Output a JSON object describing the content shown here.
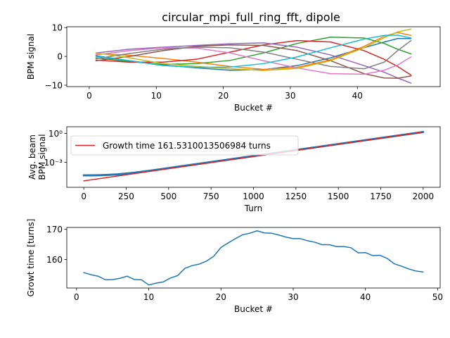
{
  "title": "circular_mpi_full_ring_fft, dipole",
  "chart_data": [
    {
      "type": "line",
      "xlabel": "Bucket #",
      "ylabel": "BPM signal",
      "xlim": [
        -3.35,
        52.35
      ],
      "ylim": [
        -10.5,
        10.3
      ],
      "xticks": [
        0,
        10,
        20,
        30,
        40
      ],
      "yticks": [
        -10,
        0,
        10
      ],
      "ytick_labels": [
        "−10",
        "0",
        "10"
      ],
      "grid": false,
      "series": [
        {
          "color": "#1f77b4",
          "x": [
            1,
            6,
            11,
            16,
            21,
            26,
            31,
            36,
            41,
            44,
            46,
            48
          ],
          "values": [
            0.2,
            -1.5,
            -3.0,
            -4.0,
            -4.8,
            -4.6,
            -3.2,
            -0.5,
            3.0,
            5.0,
            6.2,
            6.2
          ]
        },
        {
          "color": "#ff7f0e",
          "x": [
            1,
            6,
            11,
            16,
            21,
            26,
            31,
            36,
            41,
            44,
            46,
            48
          ],
          "values": [
            1.0,
            0.4,
            -0.7,
            -2.0,
            -3.5,
            -4.5,
            -3.8,
            -1.2,
            3.5,
            7.0,
            8.3,
            7.3
          ]
        },
        {
          "color": "#2ca02c",
          "x": [
            1,
            6,
            11,
            16,
            21,
            26,
            31,
            36,
            41,
            44,
            46,
            48
          ],
          "values": [
            -0.5,
            -1.8,
            -2.8,
            -2.5,
            -1.4,
            1.2,
            4.5,
            6.7,
            6.4,
            4.5,
            2.5,
            0.9
          ]
        },
        {
          "color": "#d62728",
          "x": [
            1,
            6,
            11,
            16,
            21,
            26,
            31,
            36,
            41,
            44,
            46,
            48
          ],
          "values": [
            -1.3,
            -2.0,
            -2.0,
            -1.0,
            1.5,
            4.0,
            5.5,
            5.0,
            2.0,
            -1.0,
            -3.5,
            -6.5
          ]
        },
        {
          "color": "#9467bd",
          "x": [
            1,
            6,
            11,
            16,
            21,
            26,
            31,
            36,
            41,
            44,
            46,
            48
          ],
          "values": [
            1.2,
            2.5,
            3.2,
            3.8,
            4.4,
            4.7,
            3.2,
            0.5,
            -3.2,
            -5.5,
            -7.5,
            -9.3
          ]
        },
        {
          "color": "#8c564b",
          "x": [
            1,
            6,
            11,
            16,
            21,
            26,
            31,
            36,
            41,
            44,
            46,
            48
          ],
          "values": [
            -1.5,
            0.0,
            2.0,
            3.5,
            4.0,
            3.8,
            2.0,
            -1.5,
            -6.0,
            -7.5,
            -7.6,
            -6.8
          ]
        },
        {
          "color": "#e377c2",
          "x": [
            1,
            6,
            11,
            16,
            21,
            26,
            31,
            36,
            41,
            44,
            46,
            48
          ],
          "values": [
            0.5,
            2.0,
            3.0,
            2.9,
            1.2,
            -1.5,
            -4.0,
            -6.0,
            -6.2,
            -4.8,
            -3.0,
            -0.2
          ]
        },
        {
          "color": "#7f7f7f",
          "x": [
            1,
            6,
            11,
            16,
            21,
            26,
            31,
            36,
            41,
            44,
            46,
            48
          ],
          "values": [
            -0.8,
            1.0,
            2.5,
            3.2,
            3.0,
            1.5,
            -1.0,
            -3.5,
            -4.3,
            -2.0,
            2.0,
            5.5
          ]
        },
        {
          "color": "#bcbd22",
          "x": [
            1,
            6,
            11,
            16,
            21,
            26,
            31,
            36,
            41,
            44,
            46,
            48
          ],
          "values": [
            1.2,
            -0.5,
            -2.5,
            -3.5,
            -4.3,
            -4.9,
            -4.2,
            -1.5,
            3.0,
            6.5,
            8.5,
            9.5
          ]
        },
        {
          "color": "#17becf",
          "x": [
            1,
            6,
            11,
            16,
            21,
            26,
            31,
            36,
            41,
            44,
            46,
            48
          ],
          "values": [
            0.0,
            -1.5,
            -3.2,
            -3.8,
            -3.7,
            -2.5,
            -0.2,
            3.0,
            6.0,
            7.3,
            7.4,
            6.4
          ]
        }
      ]
    },
    {
      "type": "line",
      "xlabel": "Turn",
      "ylabel": "Avg. beam\nBPM signal",
      "xlim": [
        -100,
        2100
      ],
      "log_y": true,
      "ylim_log10": [
        -5.6,
        0.7
      ],
      "xticks": [
        0,
        250,
        500,
        750,
        1000,
        1250,
        1500,
        1750,
        2000
      ],
      "ytick_values_log10": [
        0,
        -3
      ],
      "ytick_labels": [
        "10⁰",
        "10⁻³"
      ],
      "grid": false,
      "legend_location": "upper left",
      "legend_entries": [
        "Growth time 161.5310013506984 turns"
      ],
      "series": [
        {
          "color": "#1f77b4",
          "x": [
            0,
            50,
            100,
            150,
            200,
            250,
            300,
            400,
            500,
            1000,
            1500,
            2000
          ],
          "values_log10": [
            -4.35,
            -4.35,
            -4.34,
            -4.3,
            -4.25,
            -4.17,
            -4.08,
            -3.85,
            -3.6,
            -2.35,
            -1.1,
            0.15
          ]
        },
        {
          "name": "Growth time 161.5310013506984 turns",
          "color": "#d62728",
          "x": [
            0,
            2000
          ],
          "values_log10": [
            -4.93,
            0.15
          ]
        }
      ]
    },
    {
      "type": "line",
      "xlabel": "Bucket #",
      "ylabel": "Growt time [turns]",
      "xlim": [
        -1.35,
        50.35
      ],
      "ylim": [
        150.6,
        170.6
      ],
      "xticks": [
        0,
        10,
        20,
        30,
        40,
        50
      ],
      "yticks": [
        160,
        170
      ],
      "grid": false,
      "series": [
        {
          "color": "#1f77b4",
          "x": [
            1,
            2,
            3,
            4,
            5,
            6,
            7,
            8,
            9,
            10,
            11,
            12,
            13,
            14,
            15,
            16,
            17,
            18,
            19,
            20,
            21,
            22,
            23,
            24,
            25,
            26,
            27,
            28,
            29,
            30,
            31,
            32,
            33,
            34,
            35,
            36,
            37,
            38,
            39,
            40,
            41,
            42,
            43,
            44,
            45,
            46,
            47,
            48
          ],
          "values": [
            155.7,
            155.0,
            154.5,
            153.3,
            153.4,
            153.8,
            154.5,
            153.4,
            153.3,
            151.6,
            152.2,
            152.6,
            153.9,
            154.7,
            157.1,
            158.0,
            158.5,
            159.5,
            161.1,
            164.0,
            165.5,
            166.9,
            168.2,
            168.7,
            169.5,
            168.8,
            168.7,
            168.1,
            167.4,
            166.9,
            166.9,
            166.2,
            165.7,
            164.9,
            164.9,
            164.3,
            164.3,
            163.9,
            162.2,
            162.3,
            161.3,
            161.4,
            160.4,
            158.6,
            157.8,
            156.9,
            156.2,
            155.9
          ]
        }
      ]
    }
  ]
}
